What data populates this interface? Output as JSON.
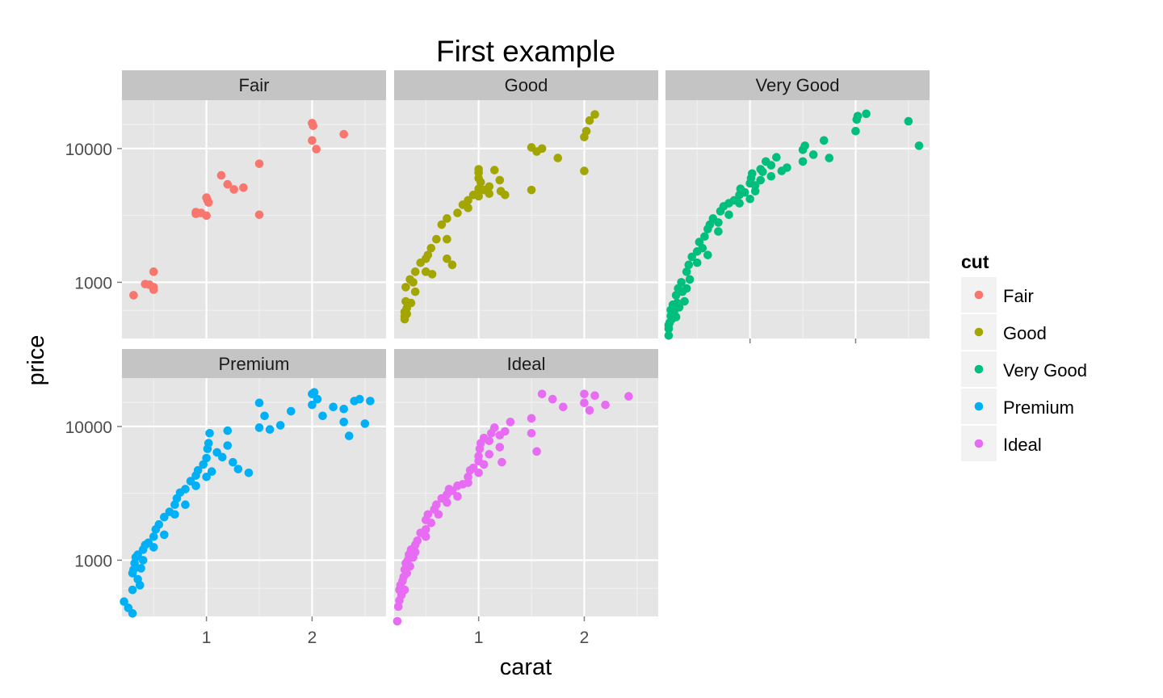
{
  "chart_data": {
    "type": "scatter",
    "title": "First example",
    "xlabel": "carat",
    "ylabel": "price",
    "x_scale": "linear",
    "y_scale": "log10",
    "xlim": [
      0.2,
      2.7
    ],
    "ylim": [
      380,
      23000
    ],
    "x_ticks": [
      1,
      2
    ],
    "x_tick_labels": [
      "1",
      "2"
    ],
    "y_ticks": [
      1000,
      10000
    ],
    "y_tick_labels": [
      "1000",
      "10000"
    ],
    "grid": true,
    "legend": {
      "title": "cut",
      "position": "right",
      "entries": [
        "Fair",
        "Good",
        "Very Good",
        "Premium",
        "Ideal"
      ]
    },
    "series": [
      {
        "name": "Fair",
        "color": "#F8766D",
        "points": [
          [
            0.31,
            800
          ],
          [
            0.42,
            970
          ],
          [
            0.46,
            960
          ],
          [
            0.5,
            920
          ],
          [
            0.5,
            880
          ],
          [
            0.5,
            1200
          ],
          [
            0.9,
            3350
          ],
          [
            0.9,
            3250
          ],
          [
            0.95,
            3300
          ],
          [
            1.0,
            3150
          ],
          [
            1.0,
            4300
          ],
          [
            1.01,
            4100
          ],
          [
            1.02,
            3950
          ],
          [
            1.14,
            6300
          ],
          [
            1.2,
            5400
          ],
          [
            1.26,
            4950
          ],
          [
            1.35,
            5100
          ],
          [
            1.5,
            7700
          ],
          [
            1.5,
            3200
          ],
          [
            2.0,
            15500
          ],
          [
            2.01,
            14800
          ],
          [
            2.0,
            11500
          ],
          [
            2.04,
            9900
          ],
          [
            2.3,
            12800
          ]
        ]
      },
      {
        "name": "Good",
        "color": "#A3A500",
        "points": [
          [
            0.3,
            530
          ],
          [
            0.3,
            560
          ],
          [
            0.3,
            600
          ],
          [
            0.31,
            720
          ],
          [
            0.31,
            920
          ],
          [
            0.32,
            580
          ],
          [
            0.32,
            640
          ],
          [
            0.35,
            1050
          ],
          [
            0.36,
            700
          ],
          [
            0.38,
            1000
          ],
          [
            0.4,
            850
          ],
          [
            0.4,
            1200
          ],
          [
            0.45,
            1400
          ],
          [
            0.5,
            1500
          ],
          [
            0.5,
            1200
          ],
          [
            0.52,
            1600
          ],
          [
            0.55,
            1800
          ],
          [
            0.56,
            1150
          ],
          [
            0.6,
            2100
          ],
          [
            0.65,
            2700
          ],
          [
            0.7,
            3000
          ],
          [
            0.7,
            2100
          ],
          [
            0.7,
            1500
          ],
          [
            0.75,
            1350
          ],
          [
            0.8,
            3300
          ],
          [
            0.85,
            3800
          ],
          [
            0.9,
            4100
          ],
          [
            0.9,
            3600
          ],
          [
            0.95,
            4500
          ],
          [
            1.0,
            4400
          ],
          [
            1.0,
            5000
          ],
          [
            1.0,
            6000
          ],
          [
            1.0,
            6600
          ],
          [
            1.0,
            7000
          ],
          [
            1.02,
            5600
          ],
          [
            1.05,
            4900
          ],
          [
            1.1,
            5200
          ],
          [
            1.1,
            4600
          ],
          [
            1.15,
            6900
          ],
          [
            1.2,
            5800
          ],
          [
            1.21,
            4800
          ],
          [
            1.25,
            4500
          ],
          [
            1.5,
            10200
          ],
          [
            1.5,
            4900
          ],
          [
            1.55,
            9500
          ],
          [
            1.6,
            10000
          ],
          [
            1.75,
            8500
          ],
          [
            2.0,
            6800
          ],
          [
            2.0,
            12200
          ],
          [
            2.02,
            13500
          ],
          [
            2.05,
            16200
          ],
          [
            2.1,
            18000
          ]
        ]
      },
      {
        "name": "Very Good",
        "color": "#00BF7D",
        "points": [
          [
            0.23,
            400
          ],
          [
            0.23,
            450
          ],
          [
            0.23,
            480
          ],
          [
            0.24,
            500
          ],
          [
            0.25,
            560
          ],
          [
            0.25,
            620
          ],
          [
            0.26,
            530
          ],
          [
            0.27,
            680
          ],
          [
            0.28,
            600
          ],
          [
            0.3,
            550
          ],
          [
            0.3,
            800
          ],
          [
            0.31,
            700
          ],
          [
            0.32,
            900
          ],
          [
            0.33,
            650
          ],
          [
            0.35,
            1000
          ],
          [
            0.36,
            850
          ],
          [
            0.38,
            720
          ],
          [
            0.4,
            1200
          ],
          [
            0.4,
            900
          ],
          [
            0.42,
            1350
          ],
          [
            0.43,
            1050
          ],
          [
            0.45,
            1550
          ],
          [
            0.5,
            1700
          ],
          [
            0.5,
            1400
          ],
          [
            0.52,
            2000
          ],
          [
            0.55,
            1800
          ],
          [
            0.57,
            2200
          ],
          [
            0.6,
            2500
          ],
          [
            0.6,
            1600
          ],
          [
            0.62,
            2700
          ],
          [
            0.65,
            3000
          ],
          [
            0.7,
            2800
          ],
          [
            0.7,
            2400
          ],
          [
            0.72,
            3400
          ],
          [
            0.75,
            3700
          ],
          [
            0.8,
            3900
          ],
          [
            0.8,
            3200
          ],
          [
            0.85,
            4100
          ],
          [
            0.9,
            4500
          ],
          [
            0.9,
            3900
          ],
          [
            0.91,
            5000
          ],
          [
            0.95,
            4700
          ],
          [
            1.0,
            5500
          ],
          [
            1.0,
            4200
          ],
          [
            1.01,
            6000
          ],
          [
            1.02,
            6500
          ],
          [
            1.05,
            5300
          ],
          [
            1.05,
            4800
          ],
          [
            1.1,
            7000
          ],
          [
            1.1,
            5800
          ],
          [
            1.12,
            6700
          ],
          [
            1.15,
            8000
          ],
          [
            1.2,
            7500
          ],
          [
            1.2,
            6200
          ],
          [
            1.25,
            8600
          ],
          [
            1.3,
            6800
          ],
          [
            1.35,
            7200
          ],
          [
            1.5,
            9800
          ],
          [
            1.5,
            8000
          ],
          [
            1.52,
            10500
          ],
          [
            1.6,
            9000
          ],
          [
            1.7,
            11500
          ],
          [
            1.75,
            8500
          ],
          [
            2.0,
            13500
          ],
          [
            2.01,
            16500
          ],
          [
            2.02,
            17500
          ],
          [
            2.1,
            18200
          ],
          [
            2.5,
            16000
          ],
          [
            2.6,
            10500
          ]
        ]
      },
      {
        "name": "Premium",
        "color": "#00B0F6",
        "points": [
          [
            0.22,
            490
          ],
          [
            0.26,
            440
          ],
          [
            0.3,
            400
          ],
          [
            0.3,
            600
          ],
          [
            0.3,
            800
          ],
          [
            0.31,
            850
          ],
          [
            0.32,
            950
          ],
          [
            0.33,
            1050
          ],
          [
            0.35,
            1100
          ],
          [
            0.35,
            720
          ],
          [
            0.37,
            650
          ],
          [
            0.38,
            870
          ],
          [
            0.4,
            1200
          ],
          [
            0.4,
            1000
          ],
          [
            0.42,
            1300
          ],
          [
            0.45,
            1350
          ],
          [
            0.5,
            1500
          ],
          [
            0.5,
            1250
          ],
          [
            0.52,
            1700
          ],
          [
            0.55,
            1850
          ],
          [
            0.6,
            2100
          ],
          [
            0.6,
            1550
          ],
          [
            0.65,
            2300
          ],
          [
            0.7,
            2600
          ],
          [
            0.7,
            2200
          ],
          [
            0.72,
            2900
          ],
          [
            0.75,
            3200
          ],
          [
            0.8,
            3400
          ],
          [
            0.8,
            2600
          ],
          [
            0.85,
            3900
          ],
          [
            0.9,
            4300
          ],
          [
            0.9,
            3600
          ],
          [
            0.92,
            4700
          ],
          [
            0.97,
            5200
          ],
          [
            1.0,
            5800
          ],
          [
            1.0,
            4200
          ],
          [
            1.01,
            6800
          ],
          [
            1.02,
            7500
          ],
          [
            1.03,
            8900
          ],
          [
            1.05,
            4600
          ],
          [
            1.1,
            6400
          ],
          [
            1.15,
            5900
          ],
          [
            1.2,
            7200
          ],
          [
            1.2,
            9300
          ],
          [
            1.25,
            5400
          ],
          [
            1.3,
            4800
          ],
          [
            1.4,
            4500
          ],
          [
            1.5,
            9800
          ],
          [
            1.5,
            15000
          ],
          [
            1.55,
            12000
          ],
          [
            1.6,
            9500
          ],
          [
            1.7,
            10200
          ],
          [
            1.8,
            13000
          ],
          [
            2.0,
            14500
          ],
          [
            2.0,
            17500
          ],
          [
            2.02,
            18000
          ],
          [
            2.05,
            16000
          ],
          [
            2.1,
            12000
          ],
          [
            2.2,
            14000
          ],
          [
            2.3,
            10800
          ],
          [
            2.3,
            13500
          ],
          [
            2.35,
            8500
          ],
          [
            2.4,
            15500
          ],
          [
            2.45,
            16000
          ],
          [
            2.5,
            10500
          ],
          [
            2.55,
            15500
          ]
        ]
      },
      {
        "name": "Ideal",
        "color": "#E76BF3",
        "points": [
          [
            0.23,
            350
          ],
          [
            0.24,
            450
          ],
          [
            0.25,
            500
          ],
          [
            0.25,
            600
          ],
          [
            0.26,
            650
          ],
          [
            0.27,
            550
          ],
          [
            0.28,
            700
          ],
          [
            0.29,
            750
          ],
          [
            0.3,
            600
          ],
          [
            0.3,
            850
          ],
          [
            0.31,
            950
          ],
          [
            0.32,
            800
          ],
          [
            0.33,
            1000
          ],
          [
            0.34,
            1100
          ],
          [
            0.35,
            900
          ],
          [
            0.36,
            1200
          ],
          [
            0.38,
            1050
          ],
          [
            0.4,
            1300
          ],
          [
            0.4,
            1150
          ],
          [
            0.42,
            1400
          ],
          [
            0.45,
            1600
          ],
          [
            0.5,
            1700
          ],
          [
            0.5,
            1500
          ],
          [
            0.5,
            2000
          ],
          [
            0.52,
            2200
          ],
          [
            0.55,
            1900
          ],
          [
            0.58,
            2400
          ],
          [
            0.6,
            2600
          ],
          [
            0.62,
            2200
          ],
          [
            0.65,
            2900
          ],
          [
            0.7,
            3100
          ],
          [
            0.7,
            2700
          ],
          [
            0.72,
            3400
          ],
          [
            0.75,
            3300
          ],
          [
            0.8,
            3600
          ],
          [
            0.8,
            3000
          ],
          [
            0.85,
            3700
          ],
          [
            0.9,
            4200
          ],
          [
            0.9,
            3800
          ],
          [
            0.92,
            4700
          ],
          [
            0.95,
            4900
          ],
          [
            1.0,
            5500
          ],
          [
            1.0,
            6000
          ],
          [
            1.0,
            4500
          ],
          [
            1.01,
            6800
          ],
          [
            1.02,
            7500
          ],
          [
            1.05,
            8200
          ],
          [
            1.05,
            5200
          ],
          [
            1.1,
            7800
          ],
          [
            1.1,
            6200
          ],
          [
            1.12,
            8900
          ],
          [
            1.15,
            9800
          ],
          [
            1.2,
            8600
          ],
          [
            1.2,
            7000
          ],
          [
            1.22,
            5400
          ],
          [
            1.25,
            9200
          ],
          [
            1.3,
            10800
          ],
          [
            1.5,
            11500
          ],
          [
            1.5,
            8900
          ],
          [
            1.55,
            6500
          ],
          [
            1.6,
            17500
          ],
          [
            1.7,
            16000
          ],
          [
            1.8,
            14000
          ],
          [
            2.0,
            17500
          ],
          [
            2.0,
            15000
          ],
          [
            2.05,
            13200
          ],
          [
            2.1,
            17000
          ],
          [
            2.2,
            14500
          ],
          [
            2.42,
            16800
          ]
        ]
      }
    ]
  },
  "facets": {
    "panel_order": [
      "Fair",
      "Good",
      "Very Good",
      "Premium",
      "Ideal"
    ],
    "strip_background": "#C4C4C4",
    "panel_background": "#E5E5E5"
  }
}
